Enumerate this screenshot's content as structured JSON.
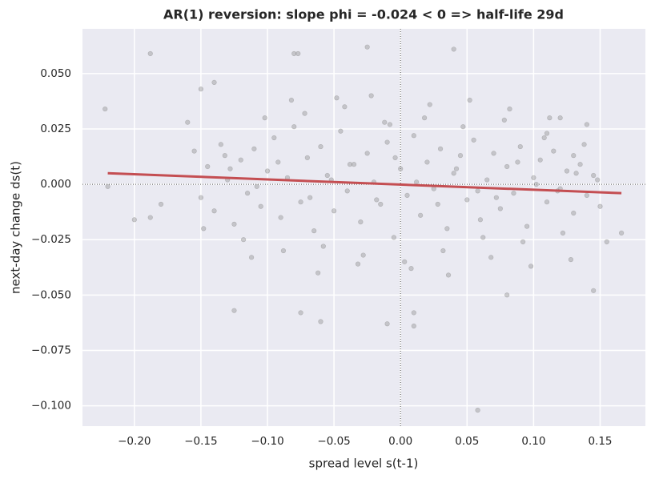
{
  "chart_data": {
    "type": "scatter",
    "title": "AR(1) reversion: slope phi = -0.024 < 0  =>  half-life 29d",
    "xlabel": "spread level  s(t-1)",
    "ylabel": "next-day change  ds(t)",
    "xlim": [
      -0.239,
      0.184
    ],
    "ylim": [
      -0.1092,
      0.0702
    ],
    "xticks": [
      {
        "value": -0.2,
        "label": "−0.20"
      },
      {
        "value": -0.15,
        "label": "−0.15"
      },
      {
        "value": -0.1,
        "label": "−0.10"
      },
      {
        "value": -0.05,
        "label": "−0.05"
      },
      {
        "value": 0,
        "label": "0.00"
      },
      {
        "value": 0.05,
        "label": "0.05"
      },
      {
        "value": 0.1,
        "label": "0.10"
      },
      {
        "value": 0.15,
        "label": "0.15"
      }
    ],
    "yticks": [
      {
        "value": -0.1,
        "label": "−0.100"
      },
      {
        "value": -0.075,
        "label": "−0.075"
      },
      {
        "value": -0.05,
        "label": "−0.050"
      },
      {
        "value": -0.025,
        "label": "−0.025"
      },
      {
        "value": 0,
        "label": "0.000"
      },
      {
        "value": 0.025,
        "label": "0.025"
      },
      {
        "value": 0.05,
        "label": "0.050"
      }
    ],
    "grid": true,
    "reference_x": 0,
    "reference_y": 0,
    "point_color": "#8c8c8c",
    "x": [
      -0.222,
      -0.22,
      -0.2,
      -0.188,
      -0.188,
      -0.18,
      -0.16,
      -0.15,
      -0.14,
      -0.125,
      -0.08,
      -0.077,
      -0.075,
      -0.06,
      -0.025,
      0.04,
      -0.01,
      0.01,
      0.01,
      0.058,
      0.08,
      0.145,
      0.166,
      0.155,
      0.11,
      0.12,
      0.14,
      0.13,
      -0.155,
      -0.15,
      -0.145,
      -0.14,
      -0.135,
      -0.13,
      -0.125,
      -0.12,
      -0.115,
      -0.11,
      -0.105,
      -0.1,
      -0.095,
      -0.09,
      -0.085,
      -0.08,
      -0.075,
      -0.07,
      -0.065,
      -0.06,
      -0.055,
      -0.05,
      -0.045,
      -0.04,
      -0.035,
      -0.03,
      -0.025,
      -0.02,
      -0.015,
      -0.01,
      -0.005,
      0.0,
      0.005,
      0.01,
      0.015,
      0.02,
      0.025,
      0.03,
      0.035,
      0.04,
      0.045,
      0.05,
      0.055,
      0.06,
      0.065,
      0.07,
      0.075,
      0.08,
      0.085,
      0.09,
      0.095,
      0.1,
      0.105,
      0.11,
      0.115,
      0.12,
      0.125,
      0.13,
      0.135,
      0.14,
      0.145,
      0.15,
      -0.148,
      -0.132,
      -0.118,
      -0.102,
      -0.088,
      -0.072,
      -0.058,
      -0.042,
      -0.028,
      -0.012,
      0.003,
      0.018,
      0.032,
      0.047,
      0.062,
      0.078,
      0.092,
      0.108,
      0.122,
      0.138,
      -0.128,
      -0.108,
      -0.092,
      -0.068,
      -0.052,
      -0.038,
      -0.018,
      -0.004,
      0.012,
      0.028,
      0.042,
      0.058,
      0.072,
      0.088,
      0.102,
      0.118,
      0.132,
      0.148,
      -0.112,
      -0.082,
      -0.062,
      -0.048,
      -0.032,
      -0.022,
      -0.008,
      0.008,
      0.022,
      0.036,
      0.052,
      0.068,
      0.082,
      0.098,
      0.112,
      0.128
    ],
    "y": [
      0.034,
      -0.001,
      -0.016,
      0.059,
      -0.015,
      -0.009,
      0.028,
      0.043,
      0.046,
      -0.057,
      0.059,
      0.059,
      -0.058,
      -0.062,
      0.062,
      0.061,
      -0.063,
      -0.058,
      -0.064,
      -0.102,
      -0.05,
      -0.048,
      -0.022,
      -0.026,
      0.023,
      0.03,
      0.027,
      0.013,
      0.015,
      -0.006,
      0.008,
      -0.012,
      0.018,
      0.002,
      -0.018,
      0.011,
      -0.004,
      0.016,
      -0.01,
      0.006,
      0.021,
      -0.015,
      0.003,
      0.026,
      -0.008,
      0.012,
      -0.021,
      0.017,
      0.004,
      -0.012,
      0.024,
      -0.003,
      0.009,
      -0.017,
      0.014,
      0.001,
      -0.009,
      0.019,
      -0.024,
      0.007,
      -0.005,
      0.022,
      -0.014,
      0.01,
      -0.002,
      0.016,
      -0.02,
      0.005,
      0.013,
      -0.007,
      0.02,
      -0.016,
      0.002,
      0.014,
      -0.011,
      0.008,
      -0.004,
      0.017,
      -0.019,
      0.003,
      0.011,
      -0.008,
      0.015,
      -0.002,
      0.006,
      -0.013,
      0.009,
      -0.005,
      0.004,
      -0.01,
      -0.02,
      0.013,
      -0.025,
      0.03,
      -0.03,
      0.032,
      -0.028,
      0.035,
      -0.032,
      0.028,
      -0.035,
      0.03,
      -0.03,
      0.026,
      -0.024,
      0.029,
      -0.026,
      0.021,
      -0.022,
      0.018,
      0.007,
      -0.001,
      0.01,
      -0.006,
      0.002,
      0.009,
      -0.007,
      0.012,
      0.001,
      -0.009,
      0.007,
      -0.003,
      -0.006,
      0.01,
      0.0,
      -0.003,
      0.005,
      0.002,
      -0.033,
      0.038,
      -0.04,
      0.039,
      -0.036,
      0.04,
      0.027,
      -0.038,
      0.036,
      -0.041,
      0.038,
      -0.033,
      0.034,
      -0.037,
      0.03,
      -0.034
    ],
    "regression": {
      "color": "#c44e52",
      "x": [
        -0.22,
        0.166
      ],
      "y": [
        0.005,
        -0.004
      ]
    }
  }
}
